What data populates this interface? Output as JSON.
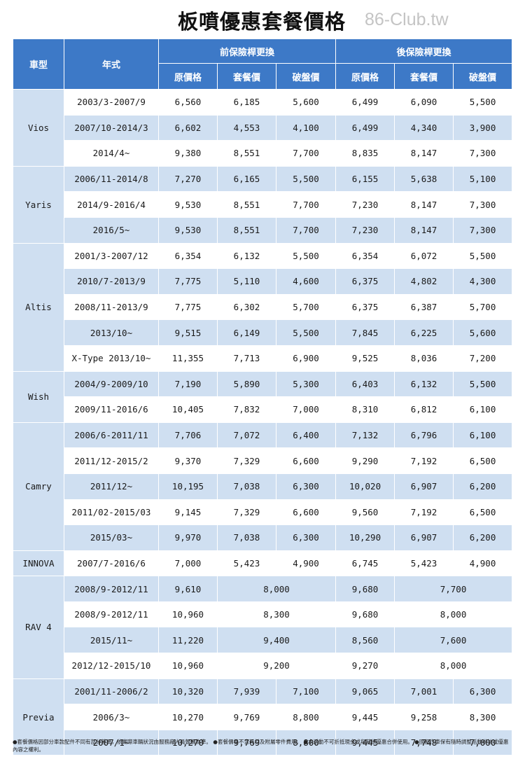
{
  "title": "板噴優惠套餐價格",
  "watermark": "86-Club.tw",
  "header": {
    "model": "車型",
    "year": "年式",
    "front_group": "前保險桿更換",
    "rear_group": "後保險桿更換",
    "original": "原價格",
    "package": "套餐價",
    "special": "破盤價"
  },
  "groups": [
    {
      "model": "Vios",
      "rows": [
        {
          "year": "2003/3-2007/9",
          "f": [
            "6,560",
            "6,185",
            "5,600"
          ],
          "r": [
            "6,499",
            "6,090",
            "5,500"
          ]
        },
        {
          "year": "2007/10-2014/3",
          "f": [
            "6,602",
            "4,553",
            "4,100"
          ],
          "r": [
            "6,499",
            "4,340",
            "3,900"
          ]
        },
        {
          "year": "2014/4~",
          "f": [
            "9,380",
            "8,551",
            "7,700"
          ],
          "r": [
            "8,835",
            "8,147",
            "7,300"
          ]
        }
      ]
    },
    {
      "model": "Yaris",
      "rows": [
        {
          "year": "2006/11-2014/8",
          "f": [
            "7,270",
            "6,165",
            "5,500"
          ],
          "r": [
            "6,155",
            "5,638",
            "5,100"
          ]
        },
        {
          "year": "2014/9-2016/4",
          "f": [
            "9,530",
            "8,551",
            "7,700"
          ],
          "r": [
            "7,230",
            "8,147",
            "7,300"
          ]
        },
        {
          "year": "2016/5~",
          "f": [
            "9,530",
            "8,551",
            "7,700"
          ],
          "r": [
            "7,230",
            "8,147",
            "7,300"
          ]
        }
      ]
    },
    {
      "model": "Altis",
      "rows": [
        {
          "year": "2001/3-2007/12",
          "f": [
            "6,354",
            "6,132",
            "5,500"
          ],
          "r": [
            "6,354",
            "6,072",
            "5,500"
          ]
        },
        {
          "year": "2010/7-2013/9",
          "f": [
            "7,775",
            "5,110",
            "4,600"
          ],
          "r": [
            "6,375",
            "4,802",
            "4,300"
          ]
        },
        {
          "year": "2008/11-2013/9",
          "f": [
            "7,775",
            "6,302",
            "5,700"
          ],
          "r": [
            "6,375",
            "6,387",
            "5,700"
          ]
        },
        {
          "year": "2013/10~",
          "f": [
            "9,515",
            "6,149",
            "5,500"
          ],
          "r": [
            "7,845",
            "6,225",
            "5,600"
          ]
        },
        {
          "year": "X-Type 2013/10~",
          "f": [
            "11,355",
            "7,713",
            "6,900"
          ],
          "r": [
            "9,525",
            "8,036",
            "7,200"
          ]
        }
      ]
    },
    {
      "model": "Wish",
      "rows": [
        {
          "year": "2004/9-2009/10",
          "f": [
            "7,190",
            "5,890",
            "5,300"
          ],
          "r": [
            "6,403",
            "6,132",
            "5,500"
          ]
        },
        {
          "year": "2009/11-2016/6",
          "f": [
            "10,405",
            "7,832",
            "7,000"
          ],
          "r": [
            "8,310",
            "6,812",
            "6,100"
          ]
        }
      ]
    },
    {
      "model": "Camry",
      "rows": [
        {
          "year": "2006/6-2011/11",
          "f": [
            "7,706",
            "7,072",
            "6,400"
          ],
          "r": [
            "7,132",
            "6,796",
            "6,100"
          ]
        },
        {
          "year": "2011/12-2015/2",
          "f": [
            "9,370",
            "7,329",
            "6,600"
          ],
          "r": [
            "9,290",
            "7,192",
            "6,500"
          ]
        },
        {
          "year": "2011/12~",
          "f": [
            "10,195",
            "7,038",
            "6,300"
          ],
          "r": [
            "10,020",
            "6,907",
            "6,200"
          ]
        },
        {
          "year": "2011/02-2015/03",
          "f": [
            "9,145",
            "7,329",
            "6,600"
          ],
          "r": [
            "9,560",
            "7,192",
            "6,500"
          ]
        },
        {
          "year": "2015/03~",
          "f": [
            "9,970",
            "7,038",
            "6,300"
          ],
          "r": [
            "10,290",
            "6,907",
            "6,200"
          ]
        }
      ]
    },
    {
      "model": "INNOVA",
      "rows": [
        {
          "year": "2007/7-2016/6",
          "f": [
            "7,000",
            "5,423",
            "4,900"
          ],
          "r": [
            "6,745",
            "5,423",
            "4,900"
          ]
        }
      ]
    },
    {
      "model": "RAV 4",
      "rows": [
        {
          "year": "2008/9-2012/11",
          "f": [
            "9,610",
            "8,000"
          ],
          "r": [
            "9,680",
            "7,700"
          ]
        },
        {
          "year": "2008/9-2012/11",
          "f": [
            "10,960",
            "8,300"
          ],
          "r": [
            "9,680",
            "8,000"
          ]
        },
        {
          "year": "2015/11~",
          "f": [
            "11,220",
            "9,400"
          ],
          "r": [
            "8,560",
            "7,600"
          ]
        },
        {
          "year": "2012/12-2015/10",
          "f": [
            "10,960",
            "9,200"
          ],
          "r": [
            "9,270",
            "8,000"
          ]
        }
      ]
    },
    {
      "model": "Previa",
      "rows": [
        {
          "year": "2001/11-2006/2",
          "f": [
            "10,320",
            "7,939",
            "7,100"
          ],
          "r": [
            "9,065",
            "7,001",
            "6,300"
          ]
        },
        {
          "year": "2006/3~",
          "f": [
            "10,270",
            "9,769",
            "8,800"
          ],
          "r": [
            "9,445",
            "9,258",
            "8,300"
          ]
        },
        {
          "year": "2007/1~",
          "f": [
            "10,270",
            "9,769",
            "8,800"
          ],
          "r": [
            "9,445",
            "7,748",
            "7,000"
          ]
        }
      ]
    }
  ],
  "footnote": "●套餐價格因部分車款配件不同有部分差異，依實際車輛狀況由服務廠人員報價為準。 ●套餐價格不含耗材及附屬零件費用。 ●本活動不可折抵現金或與其他優惠合併使用。 ●國都汽車保有隨時調整活動辦法或優惠內容之權利。"
}
